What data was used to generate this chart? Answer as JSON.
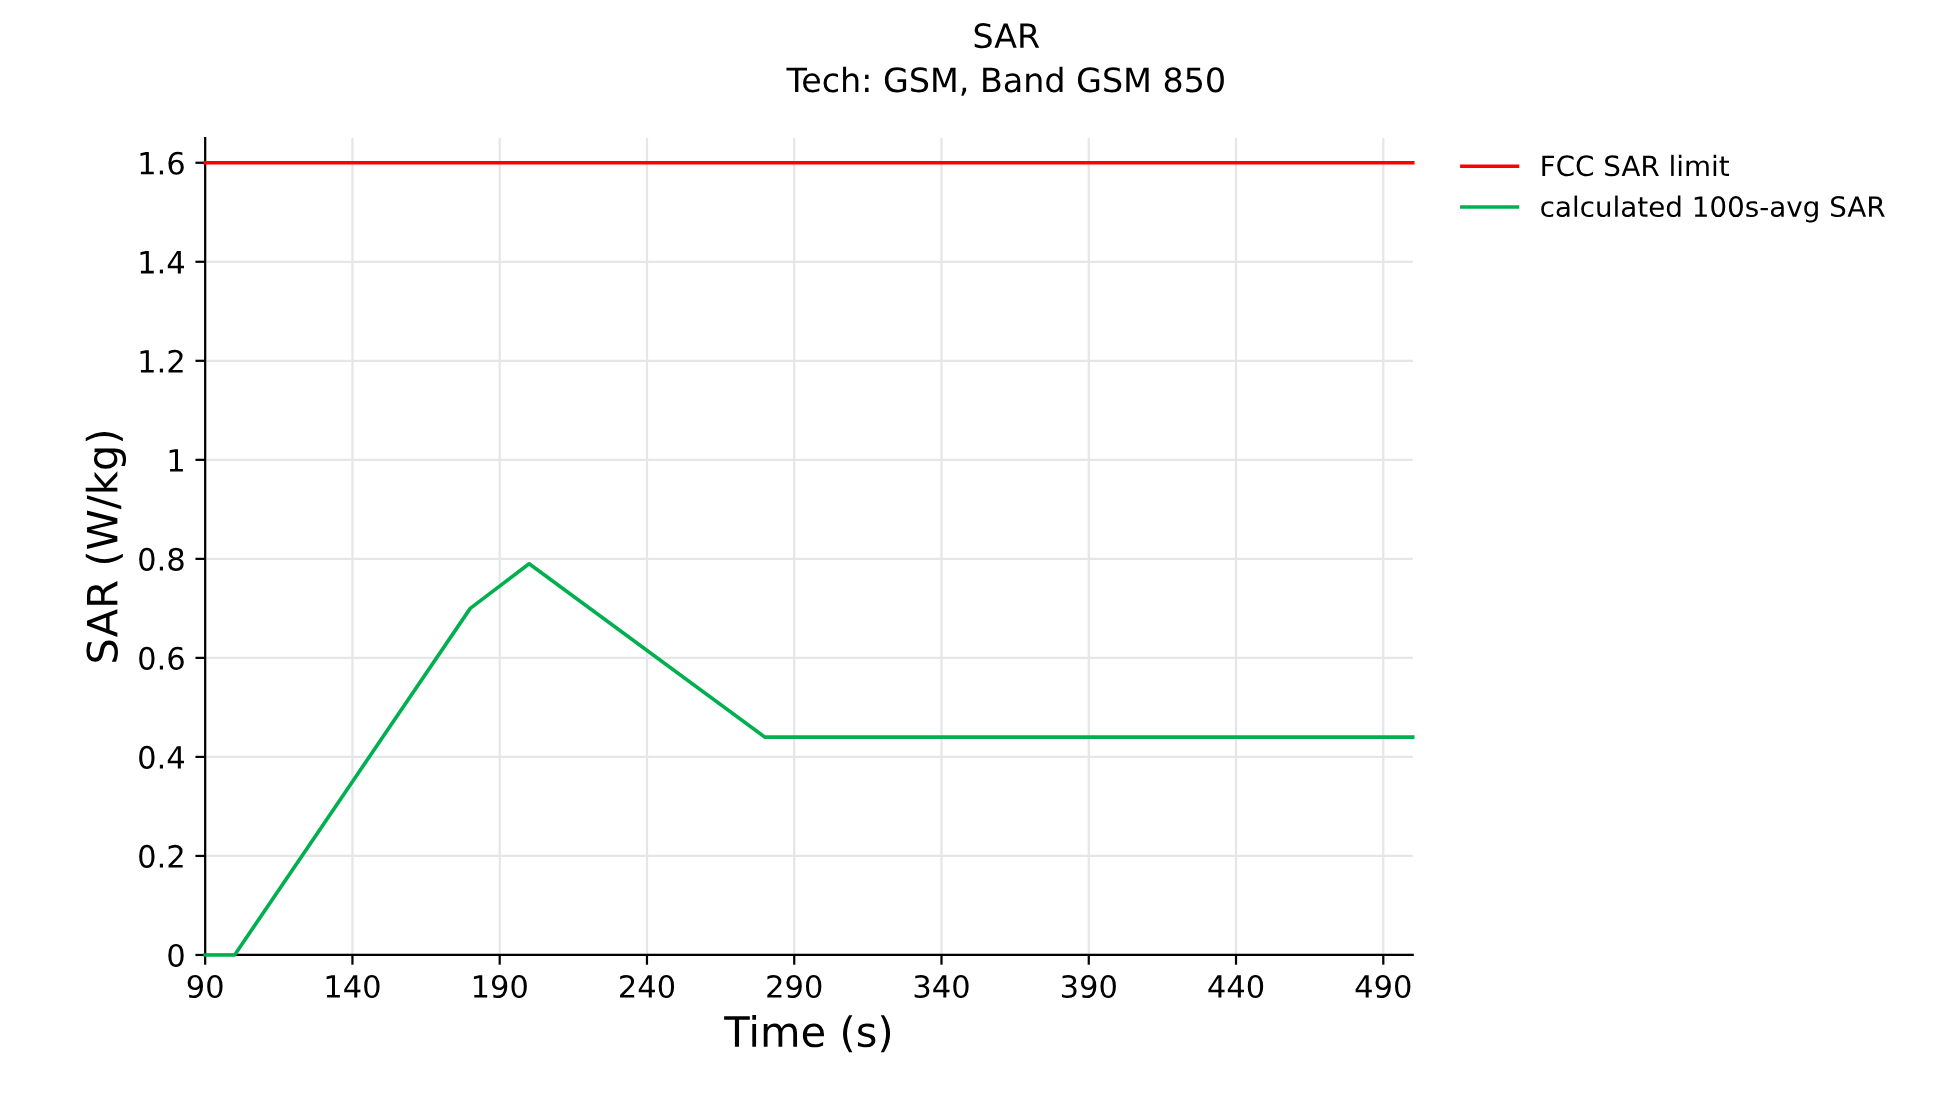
{
  "chart_data": {
    "type": "line",
    "title": "SAR",
    "subtitle": "Tech: GSM, Band GSM 850",
    "xlabel": "Time (s)",
    "ylabel": "SAR (W/kg)",
    "series": [
      {
        "name": "FCC SAR limit",
        "color": "#ff0000",
        "x": [
          90,
          500
        ],
        "values": [
          1.6,
          1.6
        ]
      },
      {
        "name": "calculated 100s-avg SAR",
        "color": "#00b050",
        "x": [
          90,
          100,
          180,
          200,
          280,
          500
        ],
        "values": [
          0,
          0,
          0.7,
          0.79,
          0.44,
          0.44
        ]
      }
    ],
    "xlim": [
      90,
      500
    ],
    "xticks": [
      90,
      140,
      190,
      240,
      290,
      340,
      390,
      440,
      490
    ],
    "ylim": [
      0,
      1.65
    ],
    "yticks": [
      0,
      0.2,
      0.4,
      0.6,
      0.8,
      1,
      1.2,
      1.4,
      1.6
    ],
    "grid": true,
    "legend": "top right",
    "marker": "none",
    "line_style": "solid"
  }
}
